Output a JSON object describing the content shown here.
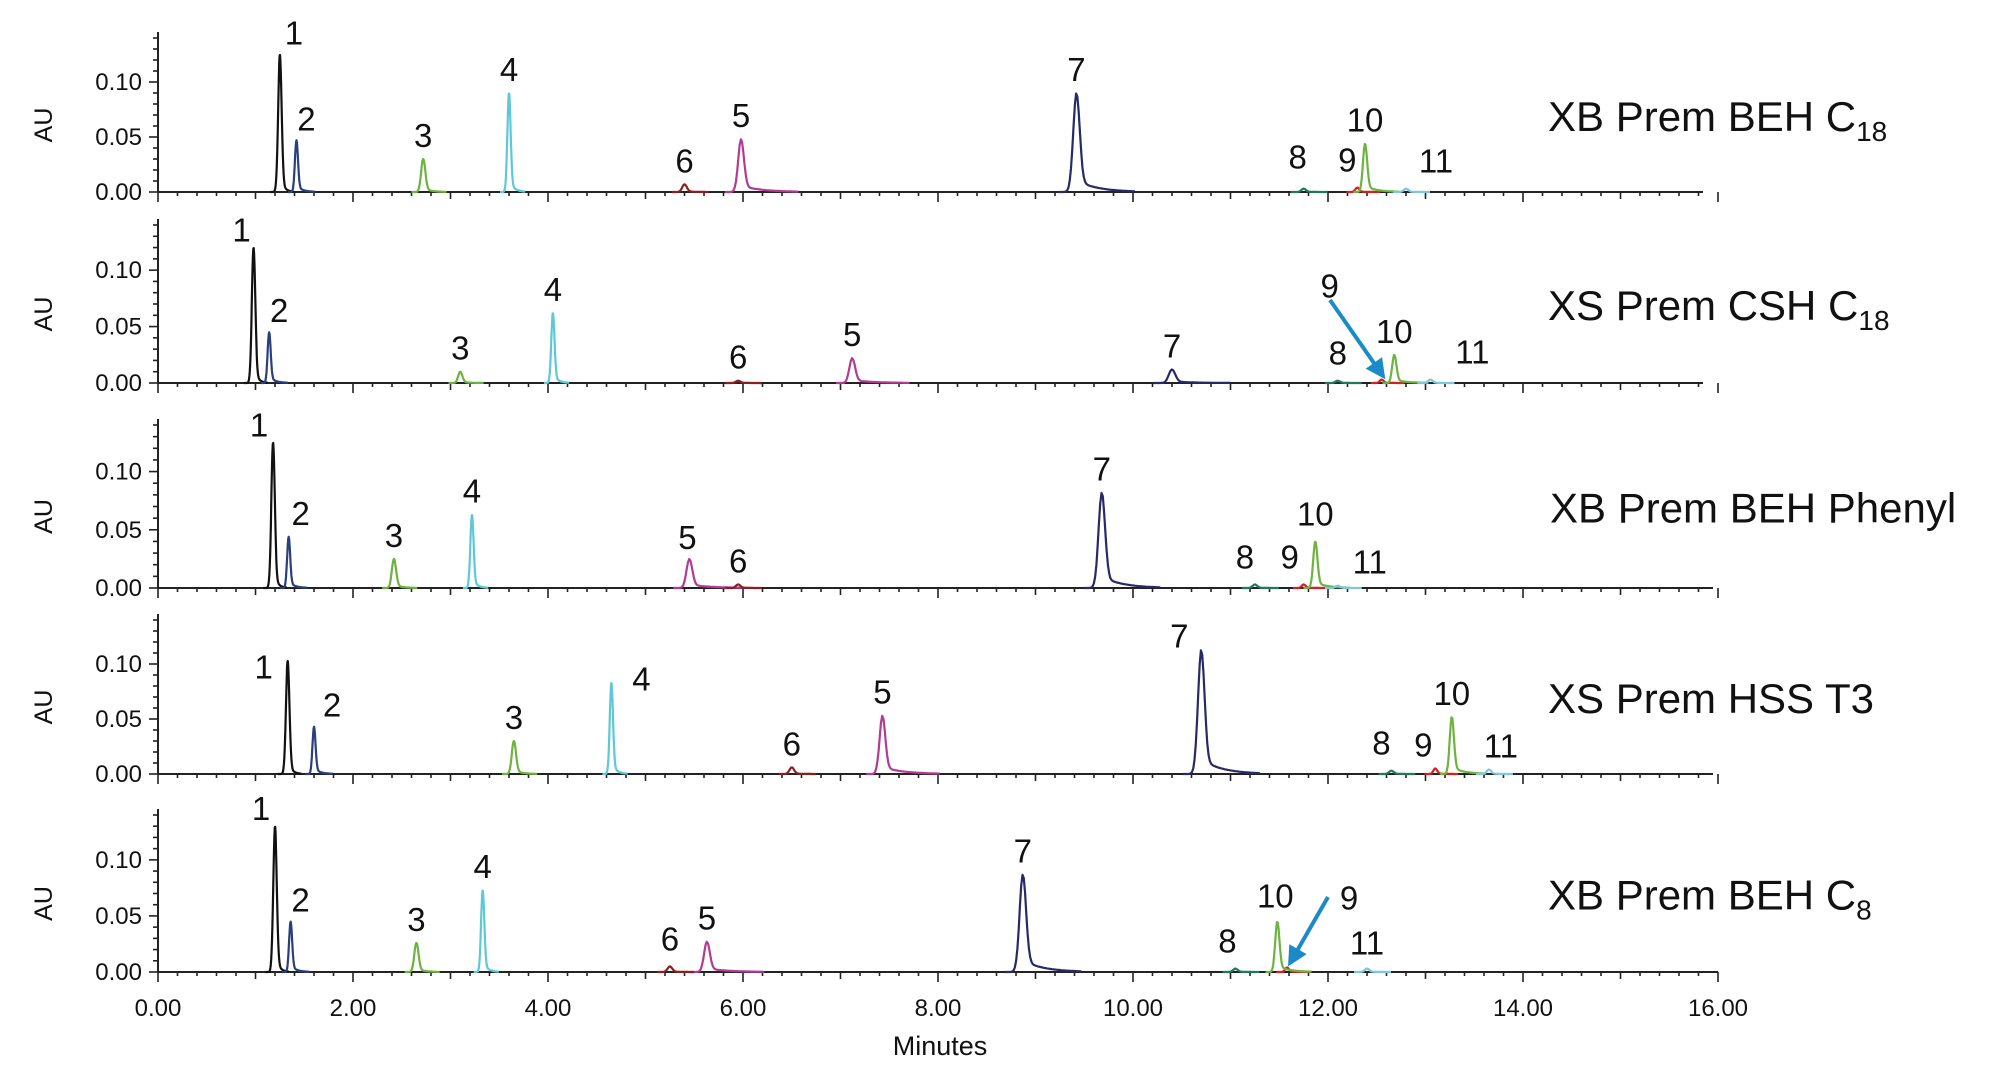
{
  "chart_data": {
    "type": "line",
    "xlabel": "Minutes",
    "ylabel": "AU",
    "xlim": [
      0,
      16
    ],
    "ylim": [
      0,
      0.14
    ],
    "x_ticks": [
      "0.00",
      "2.00",
      "4.00",
      "6.00",
      "8.00",
      "10.00",
      "12.00",
      "14.00",
      "16.00"
    ],
    "y_ticks": [
      "0.00",
      "0.05",
      "0.10"
    ],
    "colors": {
      "1": "#111111",
      "2": "#2b3f7e",
      "3": "#6db33f",
      "4": "#5ec8d8",
      "5": "#b23b94",
      "6": "#8b1f1f",
      "7": "#262a66",
      "8": "#1e7a5a",
      "9": "#d42020",
      "10": "#6db33f",
      "11": "#7cc8e0",
      "arrow": "#1a8ac8"
    },
    "panels": [
      {
        "column": "XB Prem BEH C",
        "column_sub": "18",
        "peaks": [
          {
            "label": "1",
            "x": 1.25,
            "y": 0.125
          },
          {
            "label": "2",
            "x": 1.42,
            "y": 0.047
          },
          {
            "label": "3",
            "x": 2.72,
            "y": 0.03
          },
          {
            "label": "4",
            "x": 3.6,
            "y": 0.09
          },
          {
            "label": "5",
            "x": 5.98,
            "y": 0.048
          },
          {
            "label": "6",
            "x": 5.4,
            "y": 0.007
          },
          {
            "label": "7",
            "x": 9.42,
            "y": 0.09
          },
          {
            "label": "8",
            "x": 11.75,
            "y": 0.003
          },
          {
            "label": "9",
            "x": 12.3,
            "y": 0.004
          },
          {
            "label": "10",
            "x": 12.38,
            "y": 0.044
          },
          {
            "label": "11",
            "x": 12.8,
            "y": 0.003
          }
        ]
      },
      {
        "column": "XS Prem CSH C",
        "column_sub": "18",
        "peaks": [
          {
            "label": "1",
            "x": 0.98,
            "y": 0.12
          },
          {
            "label": "2",
            "x": 1.14,
            "y": 0.045
          },
          {
            "label": "3",
            "x": 3.1,
            "y": 0.01
          },
          {
            "label": "4",
            "x": 4.05,
            "y": 0.062
          },
          {
            "label": "5",
            "x": 7.12,
            "y": 0.022
          },
          {
            "label": "6",
            "x": 5.95,
            "y": 0.002
          },
          {
            "label": "7",
            "x": 10.4,
            "y": 0.012
          },
          {
            "label": "8",
            "x": 12.1,
            "y": 0.002
          },
          {
            "label": "9",
            "x": 12.55,
            "y": 0.003
          },
          {
            "label": "10",
            "x": 12.68,
            "y": 0.025
          },
          {
            "label": "11",
            "x": 13.05,
            "y": 0.003
          }
        ]
      },
      {
        "column": "XB Prem BEH Phenyl",
        "column_sub": "",
        "peaks": [
          {
            "label": "1",
            "x": 1.18,
            "y": 0.125
          },
          {
            "label": "2",
            "x": 1.34,
            "y": 0.044
          },
          {
            "label": "3",
            "x": 2.42,
            "y": 0.025
          },
          {
            "label": "4",
            "x": 3.22,
            "y": 0.063
          },
          {
            "label": "5",
            "x": 5.45,
            "y": 0.025
          },
          {
            "label": "6",
            "x": 5.95,
            "y": 0.003
          },
          {
            "label": "7",
            "x": 9.68,
            "y": 0.082
          },
          {
            "label": "8",
            "x": 11.25,
            "y": 0.003
          },
          {
            "label": "9",
            "x": 11.75,
            "y": 0.003
          },
          {
            "label": "10",
            "x": 11.87,
            "y": 0.04
          },
          {
            "label": "11",
            "x": 12.1,
            "y": 0.002
          }
        ]
      },
      {
        "column": "XS Prem HSS T3",
        "column_sub": "",
        "peaks": [
          {
            "label": "1",
            "x": 1.33,
            "y": 0.103
          },
          {
            "label": "2",
            "x": 1.6,
            "y": 0.043
          },
          {
            "label": "3",
            "x": 3.65,
            "y": 0.03
          },
          {
            "label": "4",
            "x": 4.65,
            "y": 0.083
          },
          {
            "label": "5",
            "x": 7.43,
            "y": 0.053
          },
          {
            "label": "6",
            "x": 6.5,
            "y": 0.006
          },
          {
            "label": "7",
            "x": 10.7,
            "y": 0.113
          },
          {
            "label": "8",
            "x": 12.65,
            "y": 0.003
          },
          {
            "label": "9",
            "x": 13.1,
            "y": 0.005
          },
          {
            "label": "10",
            "x": 13.27,
            "y": 0.052
          },
          {
            "label": "11",
            "x": 13.65,
            "y": 0.004
          }
        ]
      },
      {
        "column": "XB Prem BEH C",
        "column_sub": "8",
        "peaks": [
          {
            "label": "1",
            "x": 1.2,
            "y": 0.13
          },
          {
            "label": "2",
            "x": 1.36,
            "y": 0.045
          },
          {
            "label": "3",
            "x": 2.65,
            "y": 0.026
          },
          {
            "label": "4",
            "x": 3.33,
            "y": 0.073
          },
          {
            "label": "5",
            "x": 5.63,
            "y": 0.027
          },
          {
            "label": "6",
            "x": 5.25,
            "y": 0.005
          },
          {
            "label": "7",
            "x": 8.87,
            "y": 0.087
          },
          {
            "label": "8",
            "x": 11.05,
            "y": 0.003
          },
          {
            "label": "9",
            "x": 11.58,
            "y": 0.004
          },
          {
            "label": "10",
            "x": 11.48,
            "y": 0.045
          },
          {
            "label": "11",
            "x": 12.4,
            "y": 0.003
          }
        ]
      }
    ]
  }
}
